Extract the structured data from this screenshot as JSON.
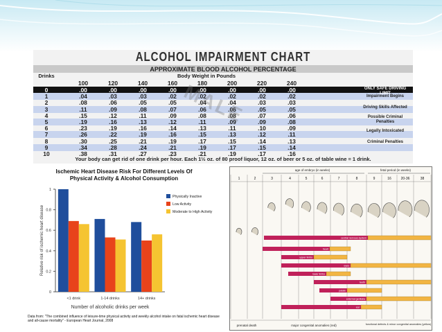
{
  "charts": {
    "impairment": {
      "title": "ALCOHOL IMPAIRMENT CHART",
      "subtitle": "APPROXIMATE BLOOD ALCOHOL PERCENTAGE",
      "drinks_header": "Drinks",
      "weight_header": "Body Weight in Pounds",
      "footer": "Your body can get rid of one drink per hour. Each 1½ oz. of 80 proof liquor, 12 oz. of beer or 5 oz. of table wine = 1 drink.",
      "notes": [
        "ONLY SAFE DRIVING LIMIT",
        "Impairment Begins",
        "Driving Skills Affected",
        "Possible Criminal Penalties",
        "Legally Intoxicated",
        "Criminal Penalties"
      ]
    },
    "heart": {
      "title_line1": "Ischemic Heart Disease Risk For Different Levels Of",
      "title_line2": "Physical Activity & Alcohol Consumption",
      "source": "Data from: \"The combined influence of leisure-time physical activity and weekly alcohol intake on fatal ischemic heart disease and all-cause mortality\" - European Heart Journal, 2008"
    },
    "embryo": {
      "top_label": "age of embryo (in weeks)",
      "fetal_label": "fetal period (in weeks)",
      "bottom_left": "prenatal death",
      "bottom_mid": "major congenital anomalies (red)",
      "bottom_right": "functional defects & minor congenital anomalies (yellow)",
      "weeks": [
        "1",
        "2",
        "3",
        "4",
        "5",
        "6",
        "7",
        "8",
        "9",
        "16",
        "20-36",
        "38"
      ],
      "bar_labels": [
        "central nervous system",
        "heart",
        "upper limbs",
        "eyes",
        "lower limbs",
        "teeth",
        "palate",
        "external genitalia",
        "ear"
      ]
    }
  },
  "chart_data": [
    {
      "type": "table",
      "title": "ALCOHOL IMPAIRMENT CHART",
      "subtitle": "APPROXIMATE BLOOD ALCOHOL PERCENTAGE",
      "columns": [
        "100",
        "120",
        "140",
        "160",
        "180",
        "200",
        "220",
        "240"
      ],
      "rows": [
        {
          "drinks": "0",
          "values": [
            ".00",
            ".00",
            ".00",
            ".00",
            ".00",
            ".00",
            ".00",
            ".00"
          ]
        },
        {
          "drinks": "1",
          "values": [
            ".04",
            ".03",
            ".03",
            ".02",
            ".02",
            ".02",
            ".02",
            ".02"
          ]
        },
        {
          "drinks": "2",
          "values": [
            ".08",
            ".06",
            ".05",
            ".05",
            ".04",
            ".04",
            ".03",
            ".03"
          ]
        },
        {
          "drinks": "3",
          "values": [
            ".11",
            ".09",
            ".08",
            ".07",
            ".06",
            ".06",
            ".05",
            ".05"
          ]
        },
        {
          "drinks": "4",
          "values": [
            ".15",
            ".12",
            ".11",
            ".09",
            ".08",
            ".08",
            ".07",
            ".06"
          ]
        },
        {
          "drinks": "5",
          "values": [
            ".19",
            ".16",
            ".13",
            ".12",
            ".11",
            ".09",
            ".09",
            ".08"
          ]
        },
        {
          "drinks": "6",
          "values": [
            ".23",
            ".19",
            ".16",
            ".14",
            ".13",
            ".11",
            ".10",
            ".09"
          ]
        },
        {
          "drinks": "7",
          "values": [
            ".26",
            ".22",
            ".19",
            ".16",
            ".15",
            ".13",
            ".12",
            ".11"
          ]
        },
        {
          "drinks": "8",
          "values": [
            ".30",
            ".25",
            ".21",
            ".19",
            ".17",
            ".15",
            ".14",
            ".13"
          ]
        },
        {
          "drinks": "9",
          "values": [
            ".34",
            ".28",
            ".24",
            ".21",
            ".19",
            ".17",
            ".15",
            ".14"
          ]
        },
        {
          "drinks": "10",
          "values": [
            ".38",
            ".31",
            ".27",
            ".23",
            ".21",
            ".19",
            ".17",
            ".16"
          ]
        }
      ]
    },
    {
      "type": "bar",
      "title": "Ischemic Heart Disease Risk For Different Levels Of Physical Activity & Alcohol Consumption",
      "categories": [
        "<1 drink",
        "1-14 drinks",
        "14+ drinks"
      ],
      "series": [
        {
          "name": "Physically Inactive",
          "color": "#1f4e9c",
          "values": [
            1.0,
            0.71,
            0.68
          ]
        },
        {
          "name": "Low Activity",
          "color": "#e8431b",
          "values": [
            0.69,
            0.53,
            0.5
          ]
        },
        {
          "name": "Moderate to High Activity",
          "color": "#f5c431",
          "values": [
            0.66,
            0.51,
            0.56
          ]
        }
      ],
      "xlabel": "Number of alcoholic drinks per week",
      "ylabel": "Relative risk of ischemic heart disease",
      "ylim": [
        0,
        1
      ],
      "yticks": [
        "0",
        "0.2",
        "0.4",
        "0.6",
        "0.8",
        "1"
      ],
      "legend": "right",
      "grid": false
    }
  ]
}
